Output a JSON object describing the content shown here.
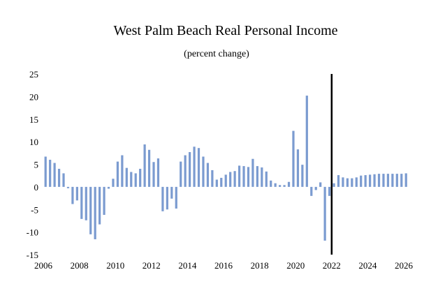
{
  "chart_data": {
    "type": "bar",
    "title": "West Palm Beach Real Personal Income",
    "subtitle": "(percent change)",
    "xlabel": "",
    "ylabel": "",
    "ylim": [
      -15,
      25
    ],
    "yticks": [
      "25",
      "20",
      "15",
      "10",
      "5",
      "0",
      "-5",
      "-10",
      "-15"
    ],
    "ytick_values": [
      25,
      20,
      15,
      10,
      5,
      0,
      -5,
      -10,
      -15
    ],
    "xticks": [
      "2006",
      "2008",
      "2010",
      "2012",
      "2014",
      "2016",
      "2018",
      "2020",
      "2022",
      "2024",
      "2026"
    ],
    "x_start_year": 2006,
    "periods_per_year": 4,
    "forecast_start": "2022",
    "grid": false,
    "bar_color": "#7b9bd0",
    "series": [
      {
        "values": [
          6.7,
          6.0,
          5.3,
          4.0,
          3.0,
          -0.3,
          -3.8,
          -3.0,
          -7.1,
          -7.4,
          -10.5,
          -11.6,
          -8.3,
          -6.2,
          -0.4,
          1.8,
          5.6,
          7.0,
          4.2,
          3.3,
          3.0,
          4.0,
          9.4,
          8.2,
          5.5,
          6.3,
          -5.4,
          -5.0,
          -2.6,
          -4.8,
          5.6,
          7.0,
          7.7,
          8.9,
          8.6,
          6.7,
          5.3,
          3.7,
          1.6,
          2.0,
          2.7,
          3.3,
          3.5,
          4.7,
          4.6,
          4.4,
          6.2,
          4.6,
          4.3,
          3.4,
          1.4,
          0.8,
          0.4,
          0.4,
          1.1,
          12.4,
          8.3,
          4.9,
          20.2,
          -2.0,
          -0.7,
          1.0,
          -11.9,
          -2.0,
          0.8,
          2.6,
          2.1,
          1.9,
          1.9,
          2.1,
          2.5,
          2.6,
          2.7,
          2.8,
          2.9,
          2.9,
          2.9,
          2.9,
          2.9,
          2.9,
          3.0
        ]
      }
    ]
  }
}
